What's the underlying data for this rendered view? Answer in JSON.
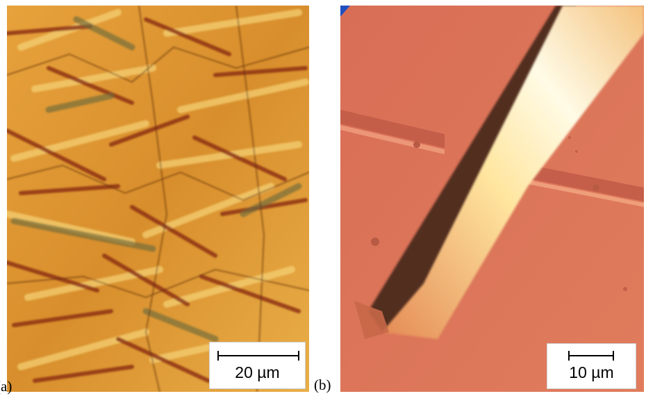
{
  "figure": {
    "panel_a": {
      "letter": "(a)",
      "scale_label": "20 µm",
      "colors": {
        "base": "#d8902e",
        "light": "#f2c868",
        "dark": "#8a2c12",
        "olive": "#7a7040"
      }
    },
    "panel_b": {
      "letter": "(b)",
      "scale_label": "10 µm",
      "colors": {
        "base": "#d9745a",
        "ridge": "#fff6c8",
        "shadow": "#3a2418",
        "corner": "#2050c0"
      }
    }
  }
}
